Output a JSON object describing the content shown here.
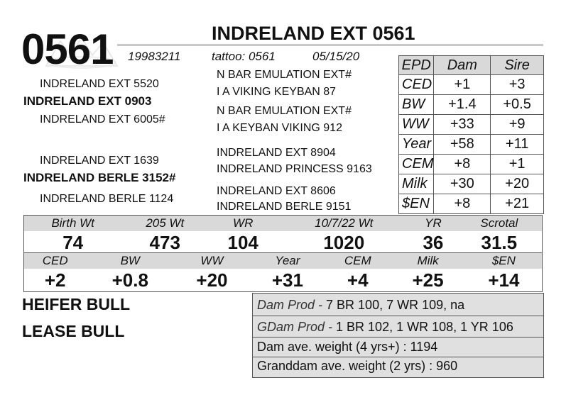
{
  "header": {
    "lot_number": "0561",
    "name": "INDRELAND EXT 0561",
    "registration": "19983211",
    "tattoo": "tattoo: 0561",
    "birth_date": "05/15/20"
  },
  "pedigree": {
    "sire": "INDRELAND EXT 0903",
    "sire_sire": "INDRELAND EXT 5520",
    "sire_dam": "INDRELAND EXT 6005#",
    "sire_sire_sire": "N BAR EMULATION EXT#",
    "sire_sire_dam": "I A VIKING KEYBAN 87",
    "sire_dam_sire": "N BAR EMULATION EXT#",
    "sire_dam_dam": "I A KEYBAN VIKING 912",
    "dam": "INDRELAND BERLE 3152#",
    "dam_sire": "INDRELAND EXT 1639",
    "dam_dam": "INDRELAND BERLE 1124",
    "dam_sire_sire": "INDRELAND EXT 8904",
    "dam_sire_dam": "INDRELAND PRINCESS 9163",
    "dam_dam_sire": "INDRELAND EXT 8606",
    "dam_dam_dam": "INDRELAND BERLE 9151"
  },
  "epd_table": {
    "headers": [
      "EPD",
      "Dam",
      "Sire"
    ],
    "rows": [
      {
        "label": "CED",
        "dam": "+1",
        "sire": "+3"
      },
      {
        "label": "BW",
        "dam": "+1.4",
        "sire": "+0.5"
      },
      {
        "label": "WW",
        "dam": "+33",
        "sire": "+9"
      },
      {
        "label": "Year",
        "dam": "+58",
        "sire": "+11"
      },
      {
        "label": "CEM",
        "dam": "+8",
        "sire": "+1"
      },
      {
        "label": "Milk",
        "dam": "+30",
        "sire": "+20"
      },
      {
        "label": "$EN",
        "dam": "+8",
        "sire": "+21"
      }
    ]
  },
  "performance": {
    "headers": [
      "Birth Wt",
      "205 Wt",
      "WR",
      "10/7/22 Wt",
      "YR",
      "Scrotal"
    ],
    "values": [
      "74",
      "473",
      "104",
      "1020",
      "36",
      "31.5"
    ]
  },
  "epds": {
    "headers": [
      "CED",
      "BW",
      "WW",
      "Year",
      "CEM",
      "Milk",
      "$EN"
    ],
    "values": [
      "+2",
      "+0.8",
      "+20",
      "+31",
      "+4",
      "+25",
      "+14"
    ]
  },
  "designations": [
    "HEIFER BULL",
    "LEASE BULL"
  ],
  "production": {
    "dam_prod_label": "Dam Prod -",
    "dam_prod_value": " 7 BR 100, 7 WR 109, na",
    "gdam_prod_label": "GDam Prod -",
    "gdam_prod_value": " 1 BR 102, 1 WR 108, 1 YR 106",
    "dam_weight": "Dam ave. weight (4 yrs+) : 1194",
    "granddam_weight": "Granddam ave. weight (2 yrs) : 960"
  }
}
